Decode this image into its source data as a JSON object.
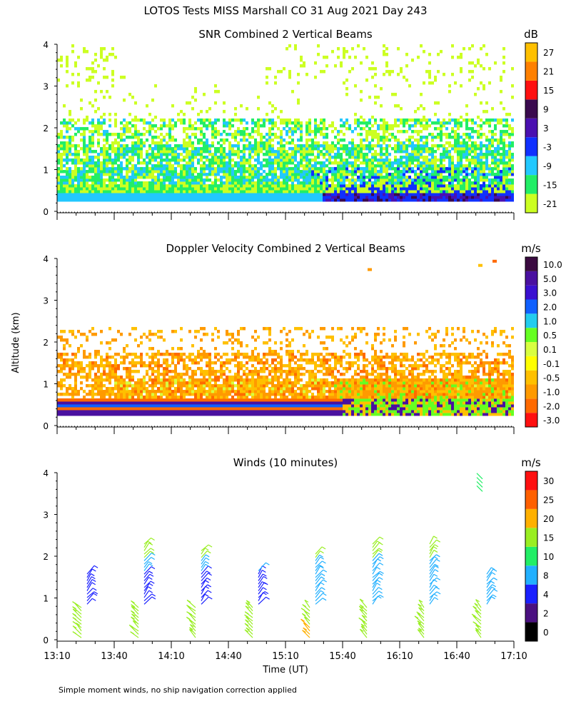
{
  "title": "LOTOS Tests MISS Marshall CO  31 Aug 2021 Day 243",
  "ylabel": "Altitude (km)",
  "xlabel": "Time (UT)",
  "footnote": "Simple moment winds, no ship navigation correction applied",
  "colors": {
    "snr_scale": [
      "#ccff22",
      "#22ee66",
      "#22c8ff",
      "#1030ff",
      "#4a10b0",
      "#3a0a4e",
      "#ff1010",
      "#ff8000",
      "#ffc000"
    ],
    "vel_scale": [
      "#ff1010",
      "#ff6a00",
      "#ff9a00",
      "#ffc000",
      "#ffff00",
      "#d8ff40",
      "#66ff22",
      "#22ccee",
      "#1060ff",
      "#3a10d0",
      "#4a10a0",
      "#3a0a40"
    ],
    "wind_scale": [
      "#000000",
      "#4a1080",
      "#1a20ff",
      "#22b0ff",
      "#22ee66",
      "#99ee22",
      "#ffb000",
      "#ff6000",
      "#ff1010"
    ]
  },
  "chart_data": [
    {
      "type": "heatmap",
      "title": "SNR Combined 2 Vertical Beams",
      "unit": "dB",
      "ylim": [
        0,
        4
      ],
      "yticks": [
        "0",
        "1",
        "2",
        "3",
        "4"
      ],
      "colorbar_labels": [
        "-21",
        "-15",
        "-9",
        "-3",
        "3",
        "9",
        "15",
        "21",
        "27"
      ]
    },
    {
      "type": "heatmap",
      "title": "Doppler Velocity Combined 2 Vertical Beams",
      "unit": "m/s",
      "ylim": [
        0,
        4
      ],
      "yticks": [
        "0",
        "1",
        "2",
        "3",
        "4"
      ],
      "colorbar_labels": [
        "-3.0",
        "-2.0",
        "-1.0",
        "-0.5",
        "-0.1",
        "0.1",
        "0.5",
        "1.0",
        "2.0",
        "3.0",
        "5.0",
        "10.0"
      ]
    },
    {
      "type": "scatter",
      "title": "Winds (10 minutes)",
      "unit": "m/s",
      "ylim": [
        0,
        4
      ],
      "yticks": [
        "0",
        "1",
        "2",
        "3",
        "4"
      ],
      "colorbar_labels": [
        "0",
        "2",
        "4",
        "8",
        "10",
        "15",
        "20",
        "25",
        "30"
      ],
      "x_ticks": [
        "13:10",
        "13:40",
        "14:10",
        "14:40",
        "15:10",
        "15:40",
        "16:10",
        "16:40",
        "17:10"
      ],
      "profile_times": [
        "13:25",
        "13:55",
        "14:25",
        "14:55",
        "15:25",
        "15:55",
        "16:25",
        "16:55"
      ]
    }
  ]
}
